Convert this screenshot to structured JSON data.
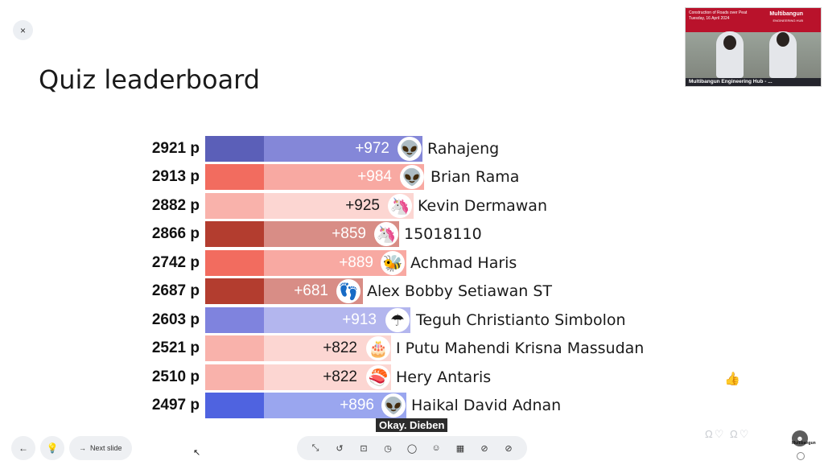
{
  "close_glyph": "×",
  "title": "Quiz leaderboard",
  "video": {
    "banner_l1": "Construction of Roads over Peat",
    "banner_l2": "Tuesday, 16 April 2024",
    "logo": "Multibangun",
    "logo_sub": "ENGINEERING HUB",
    "caption": "Multibangun Engineering Hub - ..."
  },
  "leaderboard": [
    {
      "score": "2921 p",
      "gain": "+972",
      "name": "Rahajeng",
      "avatar_icon": "alien-icon",
      "avatar_glyph": "👽",
      "prev_color": "#5b5fb8",
      "gain_color": "#8487d8"
    },
    {
      "score": "2913 p",
      "gain": "+984",
      "name": "Brian Rama",
      "avatar_icon": "alien-icon",
      "avatar_glyph": "👽",
      "prev_color": "#f26c5f",
      "gain_color": "#f8a9a2"
    },
    {
      "score": "2882 p",
      "gain": "+925",
      "name": "Kevin Dermawan",
      "avatar_icon": "unicorn-icon",
      "avatar_glyph": "🦄",
      "prev_color": "#f9b2ab",
      "gain_color": "#fcd6d2"
    },
    {
      "score": "2866 p",
      "gain": "+859",
      "name": "15018110",
      "avatar_icon": "unicorn-icon",
      "avatar_glyph": "🦄",
      "prev_color": "#b33d2f",
      "gain_color": "#d88d86"
    },
    {
      "score": "2742 p",
      "gain": "+889",
      "name": "Achmad Haris",
      "avatar_icon": "bee-icon",
      "avatar_glyph": "🐝",
      "prev_color": "#f26c5f",
      "gain_color": "#f8a9a2"
    },
    {
      "score": "2687 p",
      "gain": "+681",
      "name": "Alex Bobby Setiawan ST",
      "avatar_icon": "footprint-icon",
      "avatar_glyph": "👣",
      "prev_color": "#b33d2f",
      "gain_color": "#d88d86"
    },
    {
      "score": "2603 p",
      "gain": "+913",
      "name": "Teguh Christianto Simbolon",
      "avatar_icon": "umbrella-icon",
      "avatar_glyph": "☂",
      "prev_color": "#7f83de",
      "gain_color": "#b3b6ee"
    },
    {
      "score": "2521 p",
      "gain": "+822",
      "name": "I Putu Mahendi Krisna Massudan",
      "avatar_icon": "cake-icon",
      "avatar_glyph": "🎂",
      "prev_color": "#f9b2ab",
      "gain_color": "#fcd6d2"
    },
    {
      "score": "2510 p",
      "gain": "+822",
      "name": "Hery Antaris",
      "avatar_icon": "sushi-icon",
      "avatar_glyph": "🍣",
      "prev_color": "#f9b2ab",
      "gain_color": "#fcd6d2"
    },
    {
      "score": "2497 p",
      "gain": "+896",
      "name": "Haikal David Adnan",
      "avatar_icon": "alien-icon",
      "avatar_glyph": "👽",
      "prev_color": "#4f63e0",
      "gain_color": "#9aa6ef"
    }
  ],
  "tooltip": "Okay. Dieben",
  "bottom": {
    "back_glyph": "←",
    "hint_glyph": "💡",
    "next_label": "Next slide",
    "next_glyph": "→"
  },
  "toolbar": [
    {
      "name": "minimize-icon",
      "glyph": "⤡"
    },
    {
      "name": "rewind-icon",
      "glyph": "↺"
    },
    {
      "name": "present-icon",
      "glyph": "⊡"
    },
    {
      "name": "timer-icon",
      "glyph": "◷"
    },
    {
      "name": "comment-icon",
      "glyph": "◯"
    },
    {
      "name": "reaction-icon",
      "glyph": "☺"
    },
    {
      "name": "qr-code-icon",
      "glyph": "▦"
    },
    {
      "name": "hide-icon",
      "glyph": "⊘"
    },
    {
      "name": "stop-icon",
      "glyph": "⊘"
    }
  ],
  "thumb_glyph": "👍",
  "reactions": "Ω♡ Ω♡",
  "mini_logo_glyph": "☻",
  "mini_logo_text": "Multibangun"
}
